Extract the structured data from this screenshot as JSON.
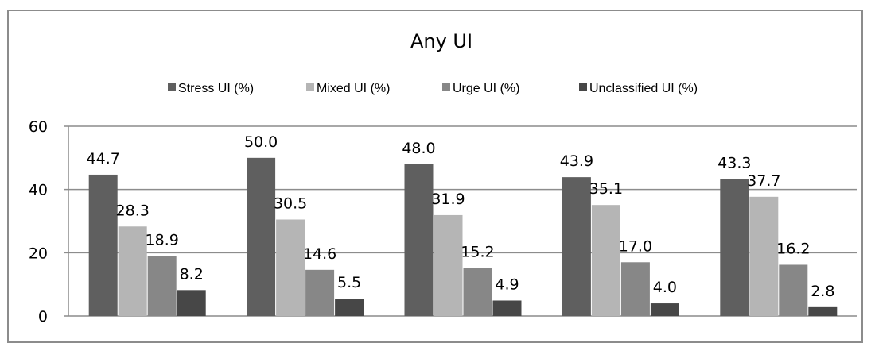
{
  "chart_data": {
    "type": "bar",
    "title": "Any UI",
    "categories": [
      "",
      "",
      "",
      "",
      ""
    ],
    "series": [
      {
        "name": "Stress UI (%)",
        "values": [
          44.7,
          50.0,
          48.0,
          43.9,
          43.3
        ],
        "color": "#5f5f5f"
      },
      {
        "name": "Mixed UI (%)",
        "values": [
          28.3,
          30.5,
          31.9,
          35.1,
          37.7
        ],
        "color": "#b5b5b5"
      },
      {
        "name": "Urge UI (%)",
        "values": [
          18.9,
          14.6,
          15.2,
          17.0,
          16.2
        ],
        "color": "#878787"
      },
      {
        "name": "Unclassified UI (%)",
        "values": [
          8.2,
          5.5,
          4.9,
          4.0,
          2.8
        ],
        "color": "#474747"
      }
    ],
    "ylim": [
      0,
      60
    ],
    "yticks": [
      "0",
      "20",
      "40",
      "60"
    ],
    "grid": true,
    "legend_position": "top",
    "data_labels": [
      [
        "44.7",
        "50.0",
        "48.0",
        "43.9",
        "43.3"
      ],
      [
        "28.3",
        "30.5",
        "31.9",
        "35.1",
        "37.7"
      ],
      [
        "18.9",
        "14.6",
        "15.2",
        "17.0",
        "16.2"
      ],
      [
        "8.2",
        "5.5",
        "4.9",
        "4.0",
        "2.8"
      ]
    ]
  }
}
